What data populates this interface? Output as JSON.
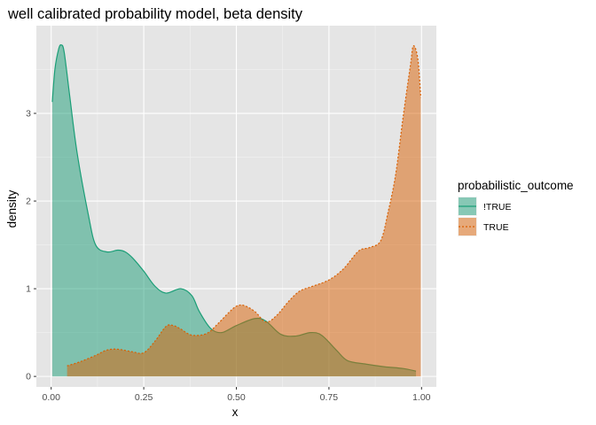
{
  "chart_data": {
    "type": "area",
    "title": "well calibrated probability model, beta density",
    "xlabel": "x",
    "ylabel": "density",
    "xlim": [
      -0.04,
      1.04
    ],
    "ylim": [
      -0.12,
      4.0
    ],
    "x_ticks": [
      "0.00",
      "0.25",
      "0.50",
      "0.75",
      "1.00"
    ],
    "x_tick_values": [
      0,
      0.25,
      0.5,
      0.75,
      1.0
    ],
    "y_ticks": [
      "0",
      "1",
      "2",
      "3"
    ],
    "y_tick_values": [
      0,
      1,
      2,
      3
    ],
    "grid": true,
    "panel_background": "#e5e5e5",
    "legend": {
      "title": "probabilistic_outcome",
      "position": "right",
      "entries": [
        {
          "label": "!TRUE",
          "color": "#1b9e77",
          "linetype": "solid"
        },
        {
          "label": "TRUE",
          "color": "#d95f02",
          "linetype": "dotted"
        }
      ]
    },
    "series": [
      {
        "name": "!TRUE",
        "color": "#1b9e77",
        "fill": "#1b9e77",
        "fill_opacity": 0.5,
        "linetype": "solid",
        "x": [
          0.003,
          0.01,
          0.02,
          0.027,
          0.035,
          0.05,
          0.07,
          0.1,
          0.12,
          0.15,
          0.18,
          0.2,
          0.22,
          0.25,
          0.28,
          0.31,
          0.35,
          0.38,
          0.4,
          0.43,
          0.46,
          0.5,
          0.55,
          0.58,
          0.62,
          0.66,
          0.7,
          0.73,
          0.77,
          0.8,
          0.85,
          0.9,
          0.95,
          0.985
        ],
        "y": [
          3.13,
          3.5,
          3.73,
          3.78,
          3.7,
          3.2,
          2.55,
          1.85,
          1.5,
          1.42,
          1.44,
          1.42,
          1.35,
          1.2,
          1.03,
          0.95,
          1.0,
          0.92,
          0.74,
          0.55,
          0.5,
          0.58,
          0.66,
          0.63,
          0.48,
          0.46,
          0.5,
          0.47,
          0.3,
          0.18,
          0.14,
          0.11,
          0.09,
          0.06
        ]
      },
      {
        "name": "TRUE",
        "color": "#d95f02",
        "fill": "#d95f02",
        "fill_opacity": 0.5,
        "linetype": "dotted",
        "x": [
          0.043,
          0.08,
          0.12,
          0.15,
          0.18,
          0.22,
          0.25,
          0.28,
          0.31,
          0.33,
          0.35,
          0.38,
          0.42,
          0.45,
          0.48,
          0.5,
          0.52,
          0.55,
          0.58,
          0.61,
          0.64,
          0.67,
          0.7,
          0.75,
          0.79,
          0.83,
          0.86,
          0.89,
          0.91,
          0.93,
          0.95,
          0.97,
          0.978,
          0.99,
          0.998
        ],
        "y": [
          0.12,
          0.17,
          0.24,
          0.3,
          0.31,
          0.28,
          0.27,
          0.4,
          0.57,
          0.58,
          0.54,
          0.47,
          0.49,
          0.6,
          0.73,
          0.8,
          0.81,
          0.74,
          0.62,
          0.7,
          0.85,
          0.97,
          1.02,
          1.1,
          1.23,
          1.43,
          1.47,
          1.55,
          1.88,
          2.3,
          2.95,
          3.55,
          3.77,
          3.62,
          3.18
        ]
      }
    ]
  }
}
